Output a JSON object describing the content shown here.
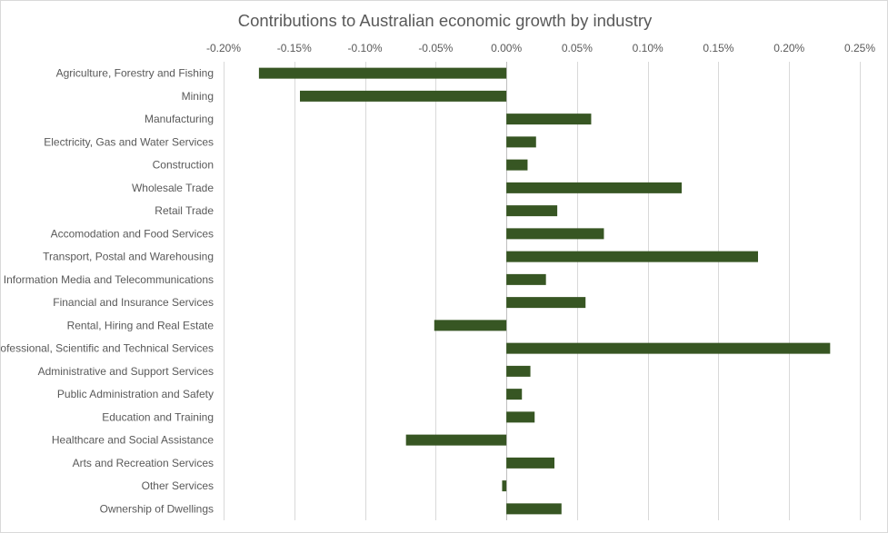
{
  "chart_data": {
    "type": "bar",
    "orientation": "horizontal",
    "title": "Contributions to Australian economic growth by industry",
    "xlabel": "",
    "ylabel": "",
    "xlim": [
      -0.2,
      0.25
    ],
    "x_ticks": [
      -0.2,
      -0.15,
      -0.1,
      -0.05,
      0.0,
      0.05,
      0.1,
      0.15,
      0.2,
      0.25
    ],
    "x_tick_labels": [
      "-0.20%",
      "-0.15%",
      "-0.10%",
      "-0.05%",
      "0.00%",
      "0.05%",
      "0.10%",
      "0.15%",
      "0.20%",
      "0.25%"
    ],
    "x_axis_position": "top",
    "grid": "vertical",
    "legend": "none",
    "bar_color": "#375623",
    "categories": [
      "Agriculture, Forestry and Fishing",
      "Mining",
      "Manufacturing",
      "Electricity, Gas and Water Services",
      "Construction",
      "Wholesale Trade",
      "Retail Trade",
      "Accomodation and Food Services",
      "Transport, Postal and Warehousing",
      "Information Media and Telecommunications",
      "Financial and Insurance Services",
      "Rental, Hiring and Real Estate",
      "Professional, Scientific and Technical Services",
      "Administrative and Support Services",
      "Public Administration and Safety",
      "Education and Training",
      "Healthcare and Social Assistance",
      "Arts and Recreation Services",
      "Other Services",
      "Ownership of Dwellings"
    ],
    "values": [
      -0.175,
      -0.146,
      0.06,
      0.021,
      0.015,
      0.124,
      0.036,
      0.069,
      0.178,
      0.028,
      0.056,
      -0.051,
      0.229,
      0.017,
      0.011,
      0.02,
      -0.071,
      0.034,
      -0.003,
      0.039
    ]
  }
}
